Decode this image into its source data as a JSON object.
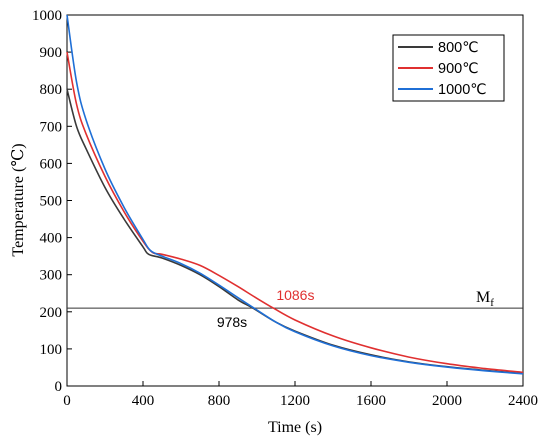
{
  "chart_data": {
    "type": "line",
    "xlabel": "Time (s)",
    "ylabel": "Temperature (℃)",
    "xlim": [
      0,
      2400
    ],
    "ylim": [
      0,
      1000
    ],
    "x_ticks": [
      0,
      400,
      800,
      1200,
      1600,
      2000,
      2400
    ],
    "y_ticks": [
      0,
      100,
      200,
      300,
      400,
      500,
      600,
      700,
      800,
      900,
      1000
    ],
    "grid": false,
    "legend_position": "top-right",
    "series": [
      {
        "name": "800℃",
        "color": "#3a3a3a",
        "points": [
          [
            0,
            800
          ],
          [
            50,
            700
          ],
          [
            100,
            640
          ],
          [
            200,
            535
          ],
          [
            300,
            450
          ],
          [
            400,
            375
          ],
          [
            430,
            355
          ],
          [
            500,
            345
          ],
          [
            600,
            325
          ],
          [
            700,
            300
          ],
          [
            800,
            268
          ],
          [
            900,
            232
          ],
          [
            978,
            210
          ],
          [
            1100,
            172
          ],
          [
            1200,
            148
          ],
          [
            1400,
            110
          ],
          [
            1600,
            84
          ],
          [
            1800,
            65
          ],
          [
            2000,
            52
          ],
          [
            2200,
            42
          ],
          [
            2400,
            34
          ]
        ]
      },
      {
        "name": "900℃",
        "color": "#e03030",
        "points": [
          [
            0,
            900
          ],
          [
            50,
            760
          ],
          [
            100,
            680
          ],
          [
            200,
            565
          ],
          [
            300,
            470
          ],
          [
            400,
            390
          ],
          [
            450,
            360
          ],
          [
            500,
            355
          ],
          [
            600,
            342
          ],
          [
            700,
            325
          ],
          [
            800,
            298
          ],
          [
            900,
            268
          ],
          [
            1000,
            236
          ],
          [
            1086,
            210
          ],
          [
            1200,
            178
          ],
          [
            1400,
            135
          ],
          [
            1600,
            103
          ],
          [
            1800,
            78
          ],
          [
            2000,
            60
          ],
          [
            2200,
            47
          ],
          [
            2400,
            37
          ]
        ]
      },
      {
        "name": "1000℃",
        "color": "#1f6fd6",
        "points": [
          [
            0,
            1000
          ],
          [
            50,
            820
          ],
          [
            100,
            718
          ],
          [
            200,
            585
          ],
          [
            300,
            482
          ],
          [
            400,
            395
          ],
          [
            440,
            365
          ],
          [
            500,
            350
          ],
          [
            600,
            330
          ],
          [
            700,
            304
          ],
          [
            800,
            272
          ],
          [
            900,
            238
          ],
          [
            978,
            212
          ],
          [
            1100,
            172
          ],
          [
            1200,
            146
          ],
          [
            1400,
            108
          ],
          [
            1600,
            82
          ],
          [
            1800,
            64
          ],
          [
            2000,
            51
          ],
          [
            2200,
            41
          ],
          [
            2400,
            33
          ]
        ]
      }
    ],
    "reference_line": {
      "y": 210,
      "label": "M",
      "label_sub": "f"
    },
    "annotations": [
      {
        "text": "1086s",
        "x": 1086,
        "y": 210,
        "color": "#e03030"
      },
      {
        "text": "978s",
        "x": 978,
        "y": 210,
        "color": "#000000"
      }
    ]
  }
}
